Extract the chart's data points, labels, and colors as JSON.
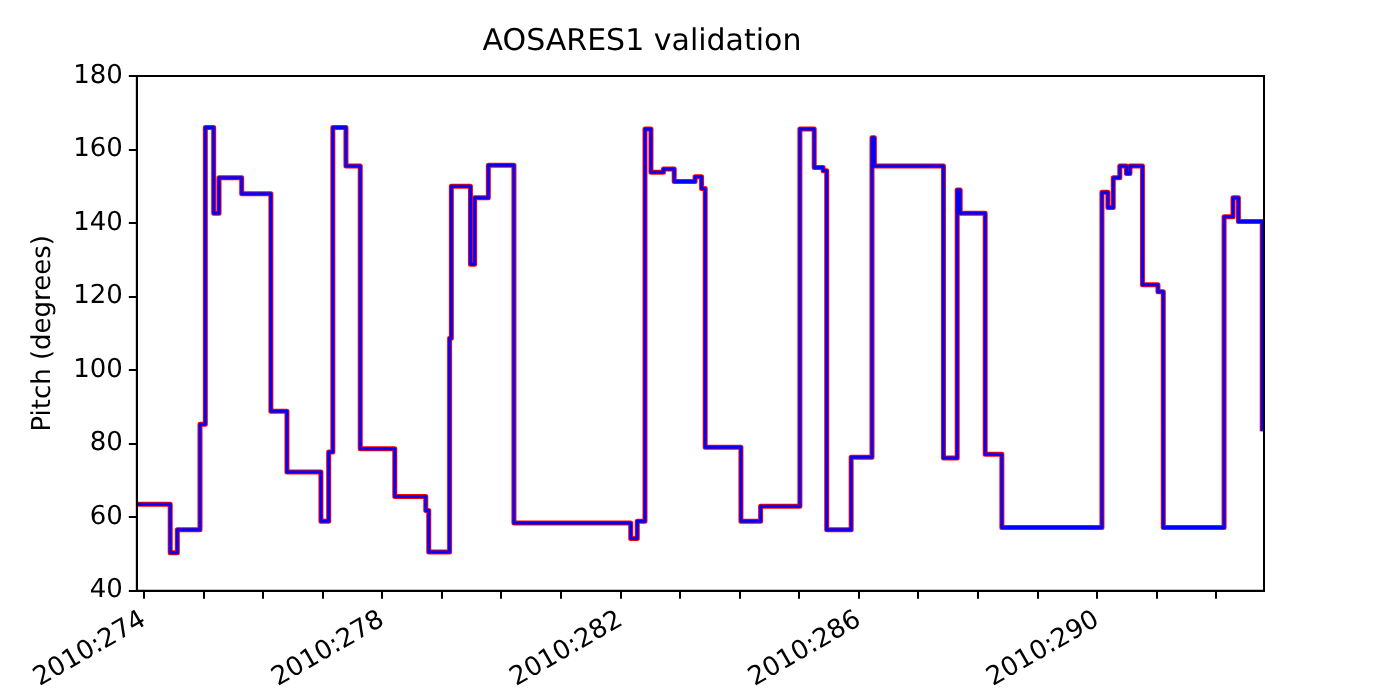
{
  "chart_data": {
    "type": "step",
    "title": "AOSARES1 validation",
    "ylabel": "Pitch (degrees)",
    "x": [
      "2010-09-30T21:36",
      "2010-10-01T10:34",
      "2010-10-01T13:26",
      "2010-10-01T22:34",
      "2010-10-02T00:43",
      "2010-10-02T04:05",
      "2010-10-02T06:14",
      "2010-10-02T15:22",
      "2010-10-03T03:07",
      "2010-10-03T09:36",
      "2010-10-03T23:17",
      "2010-10-04T02:24",
      "2010-10-04T04:05",
      "2010-10-04T09:22",
      "2010-10-04T15:07",
      "2010-10-05T05:02",
      "2010-10-05T17:31",
      "2010-10-05T18:43",
      "2010-10-06T03:07",
      "2010-10-06T03:50",
      "2010-10-06T11:31",
      "2010-10-06T13:12",
      "2010-10-06T18:43",
      "2010-10-07T05:02",
      "2010-10-09T04:05",
      "2010-10-09T06:43",
      "2010-10-09T09:50",
      "2010-10-09T12:14",
      "2010-10-09T17:17",
      "2010-10-09T21:36",
      "2010-10-10T06:00",
      "2010-10-10T08:38",
      "2010-10-10T10:05",
      "2010-10-11T00:29",
      "2010-10-11T08:24",
      "2010-10-12T00:14",
      "2010-10-12T06:00",
      "2010-10-12T09:36",
      "2010-10-12T11:02",
      "2010-10-12T20:53",
      "2010-10-13T05:17",
      "2010-10-13T06:14",
      "2010-10-14T10:05",
      "2010-10-14T15:36",
      "2010-10-14T16:48",
      "2010-10-15T02:53",
      "2010-10-15T09:36",
      "2010-10-17T01:55",
      "2010-10-17T04:19",
      "2010-10-17T06:29",
      "2010-10-17T09:07",
      "2010-10-17T11:46",
      "2010-10-17T13:12",
      "2010-10-17T18:14",
      "2010-10-18T00:29",
      "2010-10-18T02:38",
      "2010-10-19T03:07",
      "2010-10-19T06:43",
      "2010-10-19T08:53",
      "2010-10-19T18:29"
    ],
    "series": [
      {
        "color": "#ff0000",
        "values": [
          63.5,
          50.3,
          56.6,
          85.3,
          166,
          142.7,
          152.3,
          148,
          88.8,
          72.3,
          58.9,
          77.7,
          166,
          155.5,
          78.6,
          65.6,
          61.8,
          50.5,
          108.7,
          150,
          128.8,
          146.9,
          155.7,
          58.4,
          54.2,
          58.9,
          165.6,
          153.8,
          154.7,
          151.3,
          152.6,
          149.4,
          79,
          58.9,
          63,
          165.6,
          155.1,
          154.2,
          56.6,
          76.3,
          163.2,
          155.5,
          76.1,
          149,
          142.7,
          77.1,
          57.2,
          148.4,
          144.2,
          152.3,
          155.5,
          153.5,
          155.5,
          123.2,
          121.3,
          57.2,
          141.7,
          146.9,
          140.4,
          83.4
        ]
      },
      {
        "color": "#0000ff",
        "values": [
          63.5,
          50.3,
          56.6,
          85.3,
          166,
          142.7,
          152.3,
          148,
          88.8,
          72.3,
          58.9,
          77.7,
          166,
          155.5,
          78.6,
          65.6,
          61.8,
          50.5,
          108.7,
          150,
          128.8,
          146.9,
          155.7,
          58.4,
          54.2,
          58.9,
          165.6,
          153.8,
          154.7,
          151.3,
          152.6,
          149.4,
          79,
          58.9,
          63,
          165.6,
          155.1,
          154.2,
          56.6,
          76.3,
          163.2,
          155.5,
          76.1,
          149,
          142.7,
          77.1,
          57.2,
          148.4,
          144.2,
          152.3,
          155.5,
          153.5,
          155.5,
          123.2,
          121.3,
          57.2,
          141.7,
          146.9,
          140.4,
          83.4
        ]
      }
    ],
    "xlim": [
      "2010-09-30T21:07",
      "2010-10-19T19:12"
    ],
    "xticks": [
      {
        "value": "2010-10-01",
        "label": "2010:274"
      },
      {
        "value": "2010-10-02",
        "label": null
      },
      {
        "value": "2010-10-03",
        "label": null
      },
      {
        "value": "2010-10-04",
        "label": null
      },
      {
        "value": "2010-10-05",
        "label": "2010:278"
      },
      {
        "value": "2010-10-06",
        "label": null
      },
      {
        "value": "2010-10-07",
        "label": null
      },
      {
        "value": "2010-10-08",
        "label": null
      },
      {
        "value": "2010-10-09",
        "label": "2010:282"
      },
      {
        "value": "2010-10-10",
        "label": null
      },
      {
        "value": "2010-10-11",
        "label": null
      },
      {
        "value": "2010-10-12",
        "label": null
      },
      {
        "value": "2010-10-13",
        "label": "2010:286"
      },
      {
        "value": "2010-10-14",
        "label": null
      },
      {
        "value": "2010-10-15",
        "label": null
      },
      {
        "value": "2010-10-16",
        "label": null
      },
      {
        "value": "2010-10-17",
        "label": "2010:290"
      },
      {
        "value": "2010-10-18",
        "label": null
      },
      {
        "value": "2010-10-19",
        "label": null
      }
    ],
    "ylim": [
      40,
      180
    ],
    "yticks": [
      40,
      60,
      80,
      100,
      120,
      140,
      160,
      180
    ],
    "grid": false,
    "legend": false
  }
}
